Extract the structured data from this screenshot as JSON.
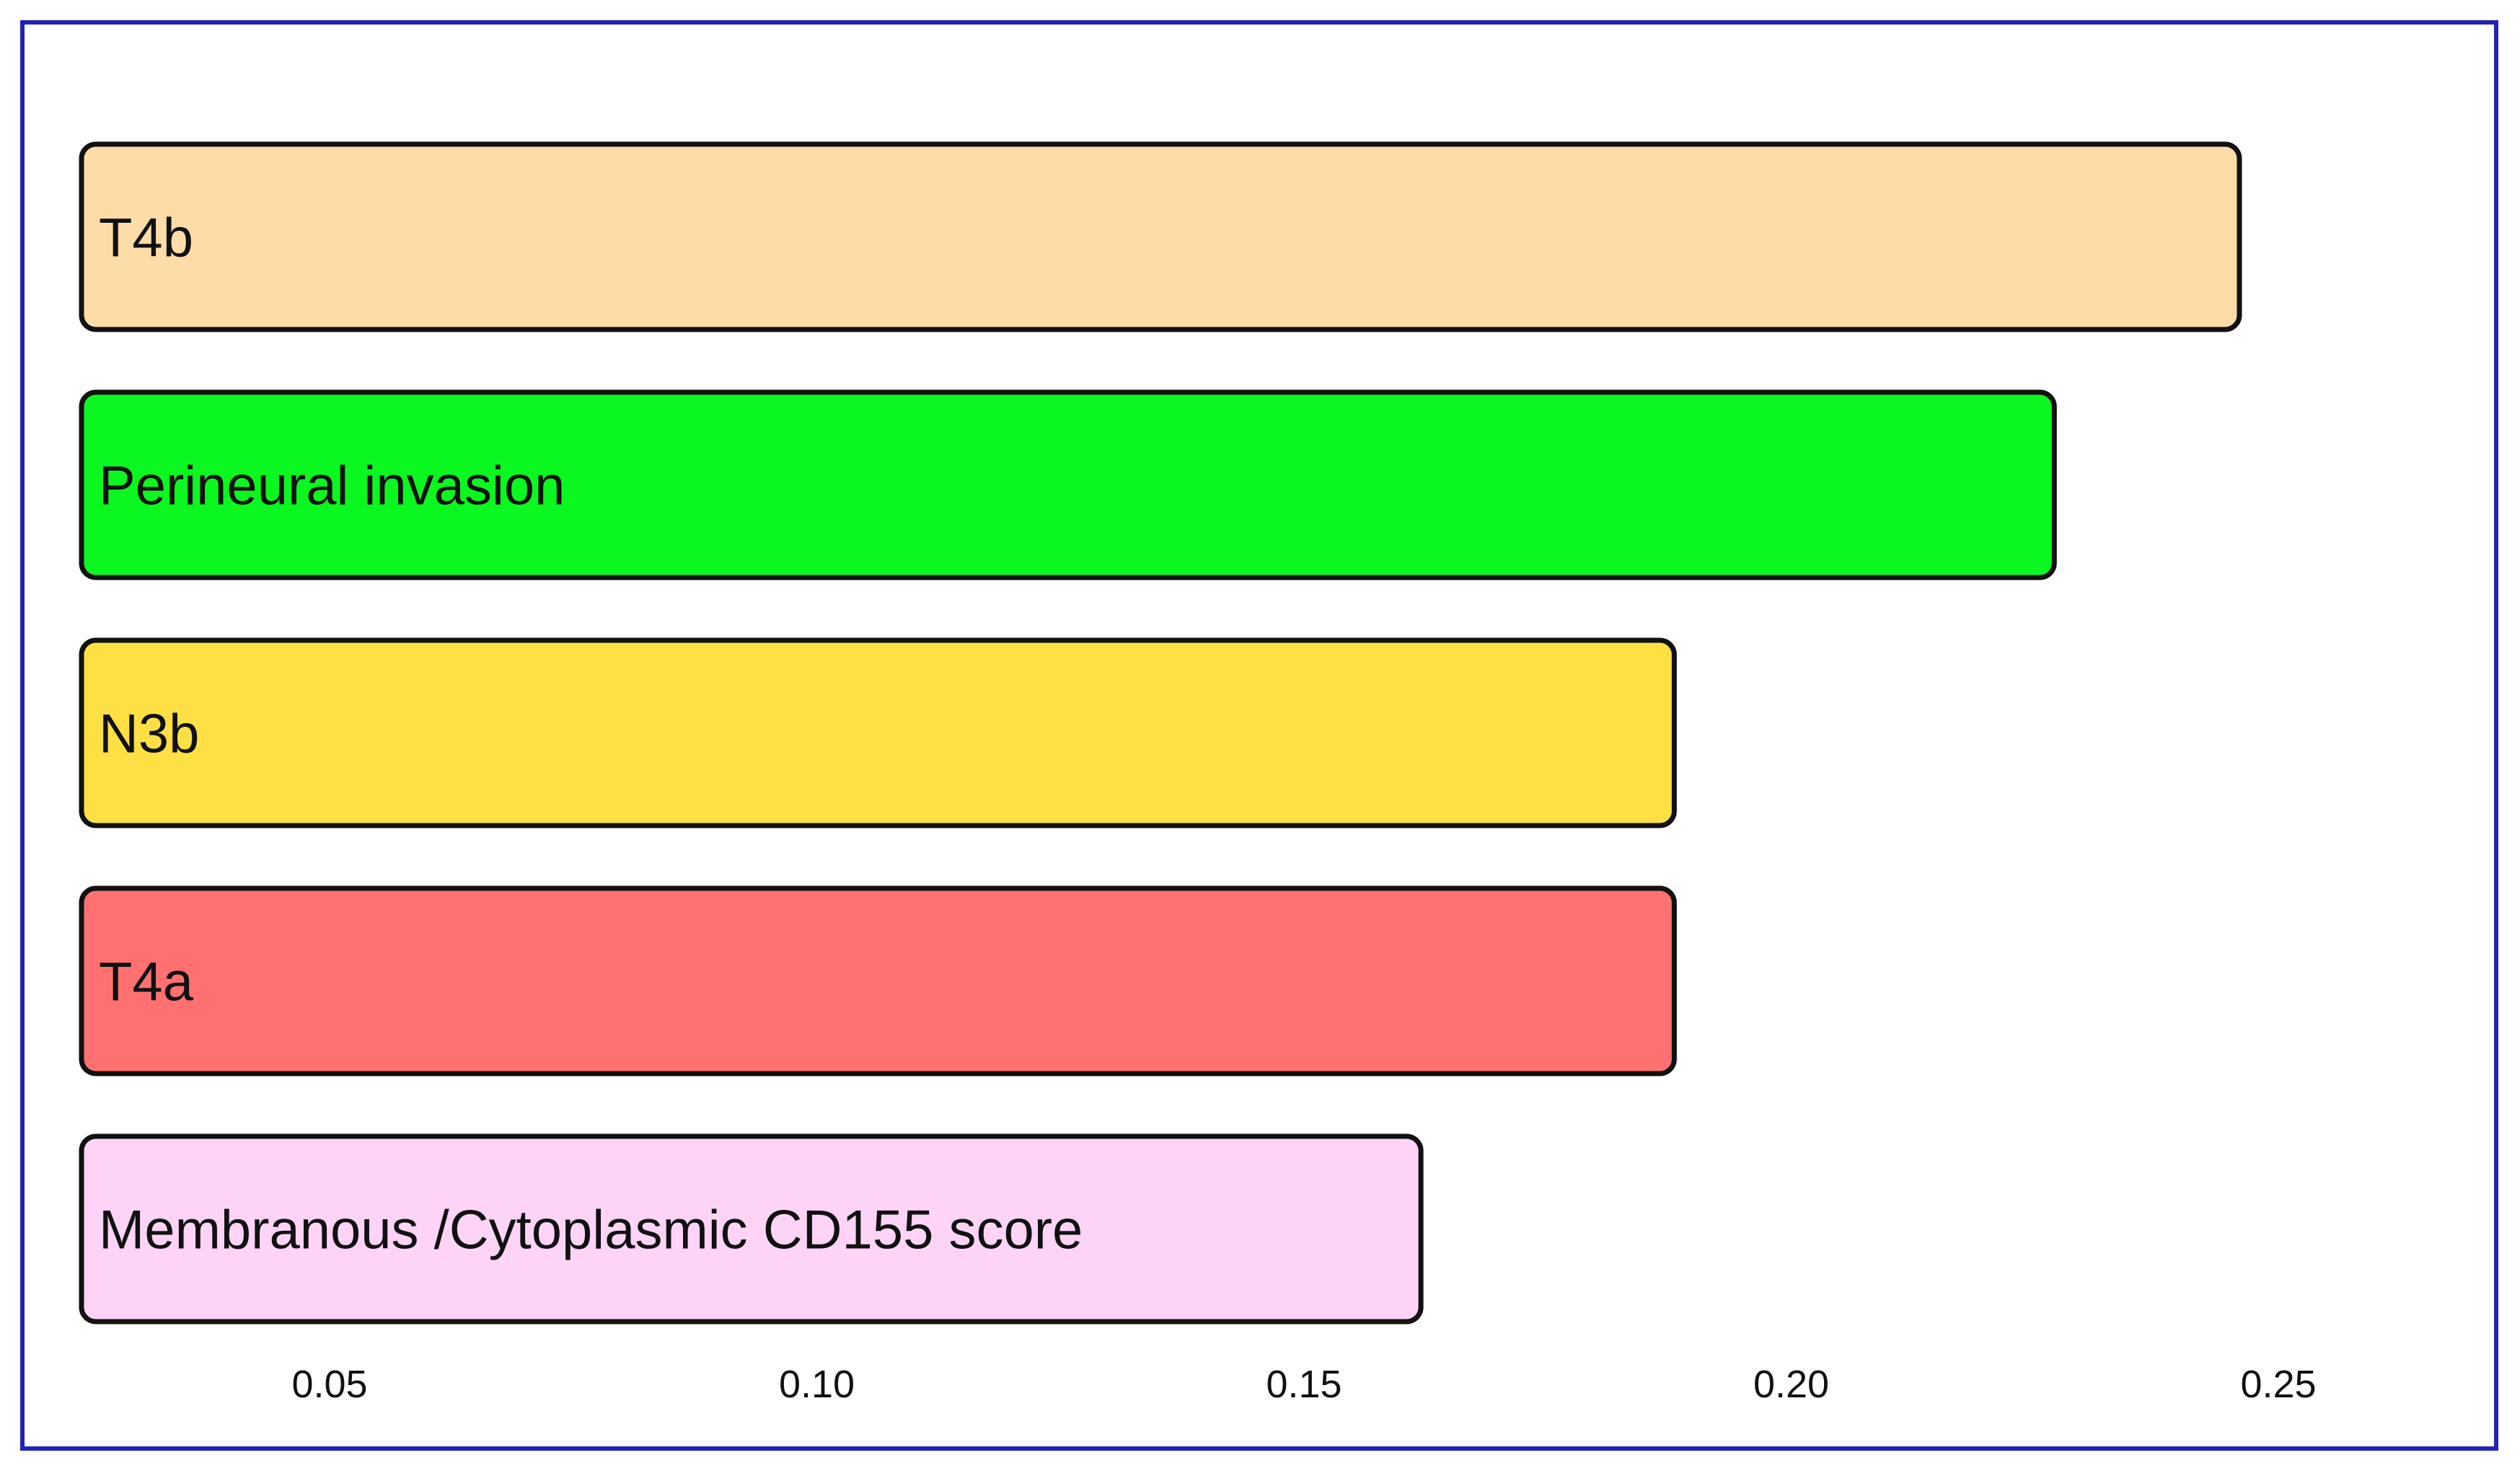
{
  "chart_data": {
    "type": "bar",
    "orientation": "horizontal",
    "title": "",
    "xlabel": "",
    "ylabel": "",
    "xlim": [
      0.025,
      0.27
    ],
    "xticks": [
      0.05,
      0.1,
      0.15,
      0.2,
      0.25
    ],
    "tick_labels": [
      "0.05",
      "0.10",
      "0.15",
      "0.20",
      "0.25"
    ],
    "categories": [
      "T4b",
      "Perineural invasion",
      "N3b",
      "T4a",
      "Membranous /Cytoplasmic CD155 score"
    ],
    "values": [
      0.246,
      0.227,
      0.188,
      0.188,
      0.162
    ],
    "colors": [
      "#fddca7",
      "#0af81f",
      "#ffe044",
      "#fe7170",
      "#fdd4f6"
    ],
    "border_color": "#2222bb"
  }
}
